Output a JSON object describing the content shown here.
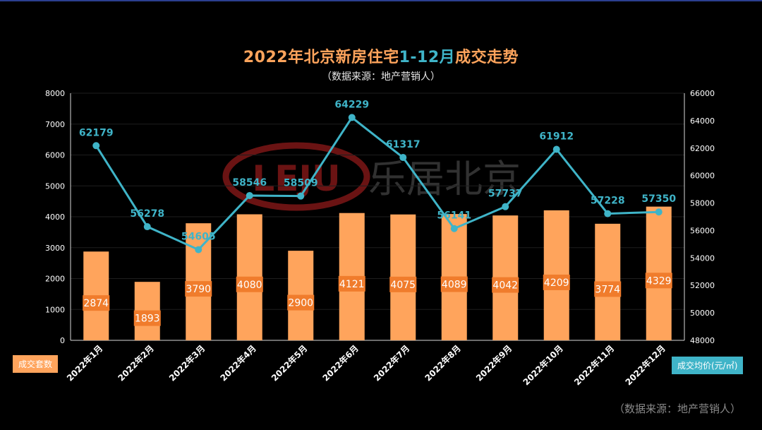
{
  "title_part1": "2022年北京新房住宅",
  "title_part2": "1-12月",
  "title_part3": "成交走势",
  "subtitle": "（数据来源：地产营销人）",
  "footer_source": "（数据来源：地产营销人）",
  "watermark": {
    "logo_text": "LEJU",
    "brand_text": "乐居北京"
  },
  "colors": {
    "bar": "#ffa45c",
    "line": "#3fb4c8",
    "bar_label_bg": "#f07c2c",
    "watermark": "#8b1a1a"
  },
  "chart_data": {
    "type": "bar",
    "categories": [
      "2022年1月",
      "2022年2月",
      "2022年3月",
      "2022年4月",
      "2022年5月",
      "2022年6月",
      "2022年7月",
      "2022年8月",
      "2022年9月",
      "2022年10月",
      "2022年11月",
      "2022年12月"
    ],
    "series": [
      {
        "name": "成交套数",
        "type": "bar",
        "axis": "left",
        "values": [
          2874,
          1893,
          3790,
          4080,
          2900,
          4121,
          4075,
          4089,
          4042,
          4209,
          3774,
          4329
        ]
      },
      {
        "name": "成交均价(元/㎡)",
        "type": "line",
        "axis": "right",
        "values": [
          62179,
          56278,
          54605,
          58546,
          58509,
          64229,
          61317,
          56141,
          57737,
          61912,
          57228,
          57350
        ]
      }
    ],
    "y_left": {
      "min": 0,
      "max": 8000,
      "ticks": [
        0,
        1000,
        2000,
        3000,
        4000,
        5000,
        6000,
        7000,
        8000
      ]
    },
    "y_right": {
      "min": 48000,
      "max": 66000,
      "ticks": [
        48000,
        50000,
        52000,
        54000,
        56000,
        58000,
        60000,
        62000,
        64000,
        66000
      ]
    },
    "grid": true,
    "left_axis_legend": "成交套数",
    "right_axis_legend": "成交均价(元/㎡)"
  }
}
